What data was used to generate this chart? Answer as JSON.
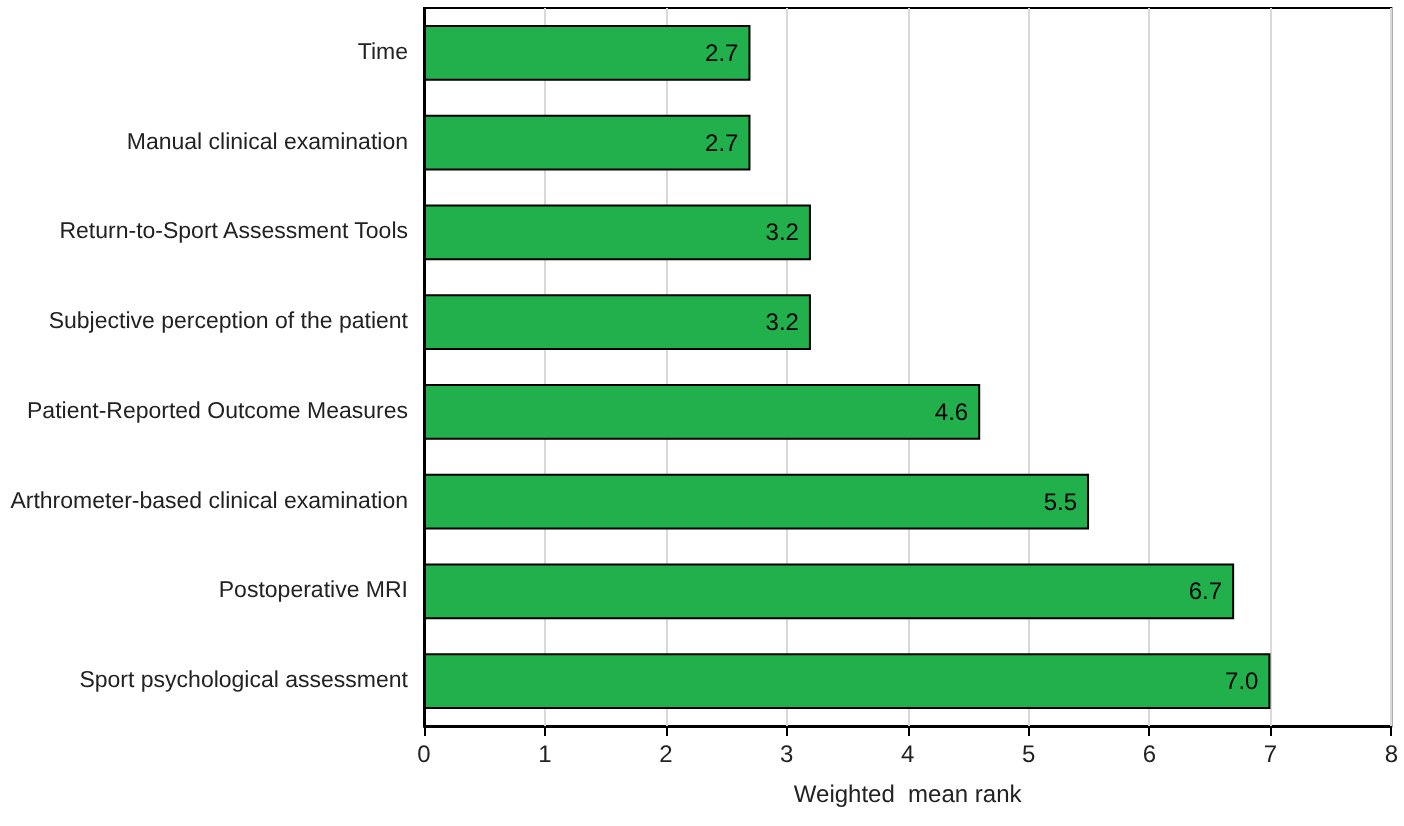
{
  "chart_data": {
    "type": "bar",
    "orientation": "horizontal",
    "categories": [
      "Time",
      "Manual clinical examination",
      "Return-to-Sport Assessment Tools",
      "Subjective perception of the patient",
      "Patient-Reported Outcome Measures",
      "Arthrometer-based clinical examination",
      "Postoperative MRI",
      "Sport psychological assessment"
    ],
    "values": [
      2.7,
      2.7,
      3.2,
      3.2,
      4.6,
      5.5,
      6.7,
      7.0
    ],
    "value_labels": [
      "2.7",
      "2.7",
      "3.2",
      "3.2",
      "4.6",
      "5.5",
      "6.7",
      "7.0"
    ],
    "color": "#21b04b",
    "xlabel": "Weighted  mean rank",
    "xlim": [
      0,
      8
    ],
    "xticks": [
      0,
      1,
      2,
      3,
      4,
      5,
      6,
      7,
      8
    ],
    "grid": "x"
  }
}
